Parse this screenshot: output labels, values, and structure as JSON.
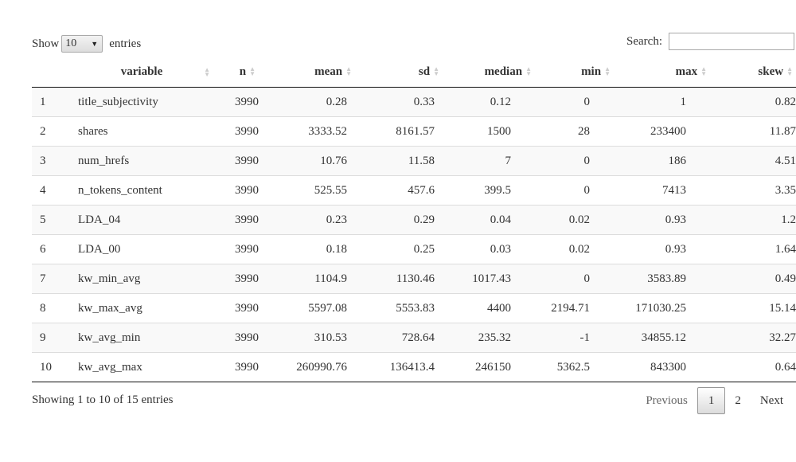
{
  "length_menu": {
    "prefix": "Show",
    "value": "10",
    "suffix": "entries"
  },
  "search": {
    "label": "Search:",
    "value": ""
  },
  "table": {
    "columns": [
      "",
      "variable",
      "n",
      "mean",
      "sd",
      "median",
      "min",
      "max",
      "skew"
    ],
    "rows": [
      [
        "1",
        "title_subjectivity",
        "3990",
        "0.28",
        "0.33",
        "0.12",
        "0",
        "1",
        "0.82"
      ],
      [
        "2",
        "shares",
        "3990",
        "3333.52",
        "8161.57",
        "1500",
        "28",
        "233400",
        "11.87"
      ],
      [
        "3",
        "num_hrefs",
        "3990",
        "10.76",
        "11.58",
        "7",
        "0",
        "186",
        "4.51"
      ],
      [
        "4",
        "n_tokens_content",
        "3990",
        "525.55",
        "457.6",
        "399.5",
        "0",
        "7413",
        "3.35"
      ],
      [
        "5",
        "LDA_04",
        "3990",
        "0.23",
        "0.29",
        "0.04",
        "0.02",
        "0.93",
        "1.2"
      ],
      [
        "6",
        "LDA_00",
        "3990",
        "0.18",
        "0.25",
        "0.03",
        "0.02",
        "0.93",
        "1.64"
      ],
      [
        "7",
        "kw_min_avg",
        "3990",
        "1104.9",
        "1130.46",
        "1017.43",
        "0",
        "3583.89",
        "0.49"
      ],
      [
        "8",
        "kw_max_avg",
        "3990",
        "5597.08",
        "5553.83",
        "4400",
        "2194.71",
        "171030.25",
        "15.14"
      ],
      [
        "9",
        "kw_avg_min",
        "3990",
        "310.53",
        "728.64",
        "235.32",
        "-1",
        "34855.12",
        "32.27"
      ],
      [
        "10",
        "kw_avg_max",
        "3990",
        "260990.76",
        "136413.4",
        "246150",
        "5362.5",
        "843300",
        "0.64"
      ]
    ]
  },
  "footer": {
    "info": "Showing 1 to 10 of 15 entries",
    "previous": "Previous",
    "pages": [
      "1",
      "2"
    ],
    "next": "Next"
  }
}
